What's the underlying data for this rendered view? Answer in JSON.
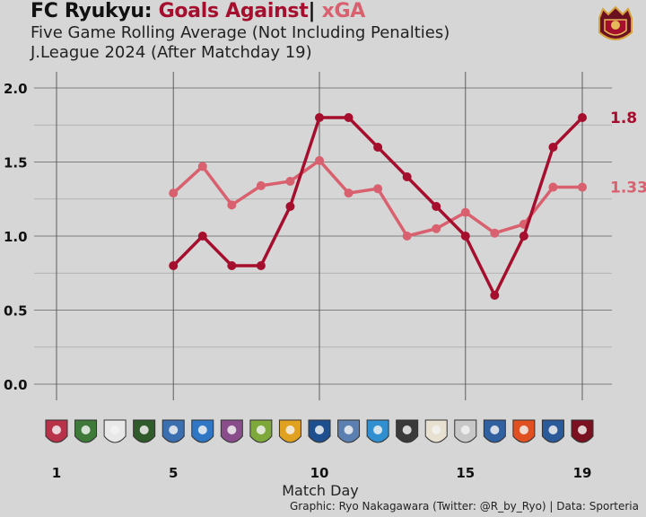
{
  "header": {
    "team": "FC Ryukyu:",
    "metric_goals_against": "Goals Against",
    "separator": "|",
    "metric_xga": "xGA",
    "subtitle_line1": "Five Game Rolling Average (Not Including Penalties)",
    "subtitle_line2": "J.League 2024 (After Matchday 19)"
  },
  "footer": {
    "credit": "Graphic: Ryo Nakagawara (Twitter: @R_by_Ryo) | Data: Sporteria"
  },
  "colors": {
    "background": "#d6d6d6",
    "goals_against": "#a50e2d",
    "xga": "#d9606e",
    "grid": "#9a9a9a"
  },
  "chart_data": {
    "type": "line",
    "xlabel": "Match Day",
    "ylabel": "",
    "xlim": [
      1,
      19
    ],
    "ylim": [
      0,
      2
    ],
    "x_ticks": [
      1,
      5,
      10,
      15,
      19
    ],
    "y_ticks": [
      "0.0",
      "0.5",
      "1.0",
      "1.5",
      "2.0"
    ],
    "grid": true,
    "opponent_badges": "one club crest per match day 1–19 along the x-axis",
    "series": [
      {
        "name": "Goals Against",
        "color": "#a50e2d",
        "x": [
          5,
          6,
          7,
          8,
          9,
          10,
          11,
          12,
          13,
          14,
          15,
          16,
          17,
          18,
          19
        ],
        "values": [
          0.8,
          1.0,
          0.8,
          0.8,
          1.2,
          1.8,
          1.8,
          1.6,
          1.4,
          1.2,
          1.0,
          0.6,
          1.0,
          1.6,
          1.8
        ],
        "end_label": "1.8"
      },
      {
        "name": "xGA",
        "color": "#d9606e",
        "x": [
          5,
          6,
          7,
          8,
          9,
          10,
          11,
          12,
          13,
          14,
          15,
          16,
          17,
          18,
          19
        ],
        "values": [
          1.29,
          1.47,
          1.21,
          1.34,
          1.37,
          1.51,
          1.29,
          1.32,
          1.0,
          1.05,
          1.16,
          1.02,
          1.08,
          1.33,
          1.33
        ],
        "end_label": "1.33"
      }
    ]
  }
}
